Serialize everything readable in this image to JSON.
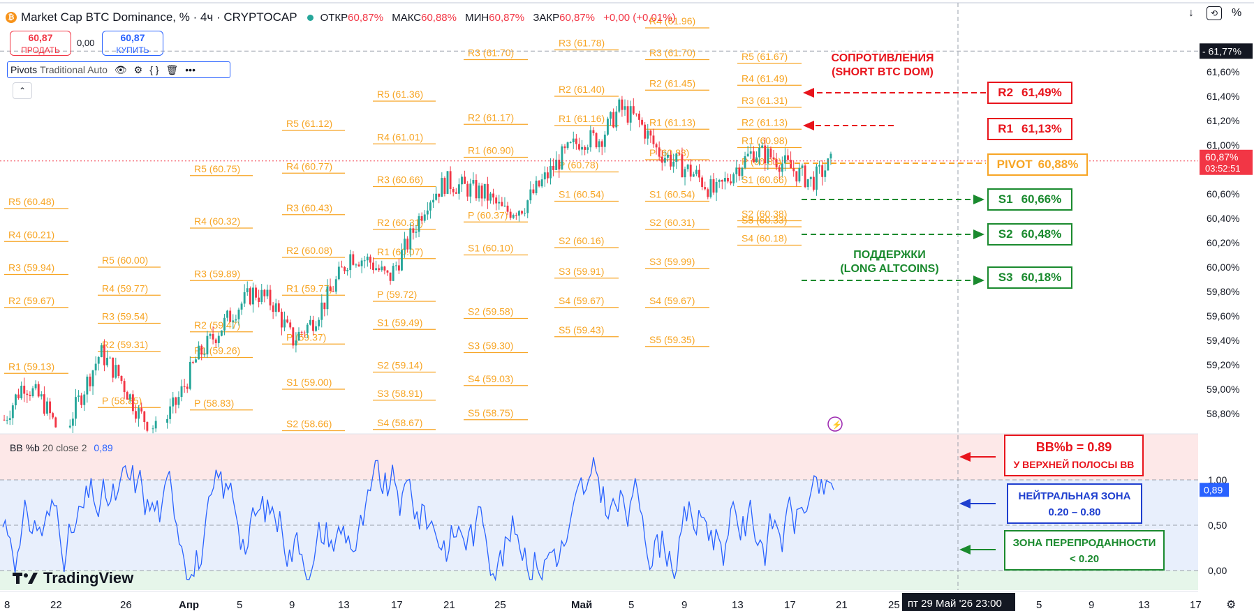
{
  "header": {
    "title": "Market Cap BTC Dominance, % · 4ч · CRYPTOCAP",
    "ohlc": [
      {
        "k": "ОТКР",
        "v": "60,87%"
      },
      {
        "k": "МАКС",
        "v": "60,88%"
      },
      {
        "k": "МИН",
        "v": "60,87%"
      },
      {
        "k": "ЗАКР",
        "v": "60,87%"
      }
    ],
    "change": "+0,00 (+0,01%)"
  },
  "trade": {
    "sell_price": "60,87",
    "sell_label": "ПРОДАТЬ",
    "spread": "0,00",
    "buy_price": "60,87",
    "buy_label": "КУПИТЬ"
  },
  "indicator": {
    "name": "Pivots",
    "params": "Traditional Auto"
  },
  "bb": {
    "name": "BB %b",
    "params": "20 close 2",
    "value": "0,89"
  },
  "brand": "TradingView",
  "price_scale": {
    "ticks": [
      "61,60%",
      "61,40%",
      "61,20%",
      "61,00%",
      "60,60%",
      "60,40%",
      "60,20%",
      "60,00%",
      "59,80%",
      "59,60%",
      "59,40%",
      "59,20%",
      "59,00%",
      "58,80%"
    ],
    "top_marker": "- 61,77%",
    "current_price": "60,87%",
    "countdown": "03:52:51"
  },
  "bb_scale": {
    "ticks": [
      "1,00",
      "0,50",
      "0,00"
    ],
    "current": "0,89"
  },
  "time_axis": {
    "ticks": [
      "8",
      "22",
      "26",
      "Апр",
      "5",
      "9",
      "13",
      "17",
      "21",
      "25",
      "Май",
      "5",
      "9",
      "13",
      "17",
      "21",
      "25",
      "5",
      "9",
      "13",
      "17"
    ],
    "crosshair_label": "пт 29 Май '26   23:00"
  },
  "colors": {
    "pivot": "#f7a524",
    "up": "#26a69a",
    "down": "#f23645",
    "bb_line": "#2962ff",
    "resist": "#e8141c",
    "support": "#1a8a2e"
  },
  "chart_data": {
    "type": "candlestick",
    "title": "Market Cap BTC Dominance, % · 4ч · CRYPTOCAP",
    "ylim": [
      58.7,
      61.95
    ],
    "pivot_groups": [
      {
        "labels": [
          "R5 (60.48)",
          "R4 (60.21)",
          "R3 (59.94)",
          "R2 (59.67)",
          "R1 (59.13)"
        ],
        "values": [
          60.48,
          60.21,
          59.94,
          59.67,
          59.13
        ]
      },
      {
        "labels": [
          "R5 (60.00)",
          "R4 (59.77)",
          "R3 (59.54)",
          "R2 (59.31)",
          "P (58.85)"
        ],
        "values": [
          60.0,
          59.77,
          59.54,
          59.31,
          58.85
        ]
      },
      {
        "labels": [
          "R5 (60.75)",
          "R4 (60.32)",
          "R3 (59.89)",
          "R2 (59.47)",
          "R1 (59.26)",
          "P (58.83)"
        ],
        "values": [
          60.75,
          60.32,
          59.89,
          59.47,
          59.26,
          58.83
        ]
      },
      {
        "labels": [
          "R5 (61.12)",
          "R4 (60.77)",
          "R3 (60.43)",
          "R2 (60.08)",
          "R1 (59.77)",
          "P (59.37)",
          "S1 (59.00)",
          "S2 (58.66)"
        ],
        "values": [
          61.12,
          60.77,
          60.43,
          60.08,
          59.77,
          59.37,
          59.0,
          58.66
        ]
      },
      {
        "labels": [
          "R5 (61.36)",
          "R4 (61.01)",
          "R3 (60.66)",
          "R2 (60.31)",
          "R1 (60.07)",
          "P (59.72)",
          "S1 (59.49)",
          "S2 (59.14)",
          "S3 (58.91)",
          "S4 (58.67)"
        ],
        "values": [
          61.36,
          61.01,
          60.66,
          60.31,
          60.07,
          59.72,
          59.49,
          59.14,
          58.91,
          58.67
        ]
      },
      {
        "labels": [
          "R3 (61.70)",
          "R2 (61.17)",
          "R1 (60.90)",
          "P (60.37)",
          "S1 (60.10)",
          "S2 (59.58)",
          "S3 (59.30)",
          "S4 (59.03)",
          "S5 (58.75)"
        ],
        "values": [
          61.7,
          61.17,
          60.9,
          60.37,
          60.1,
          59.58,
          59.3,
          59.03,
          58.75
        ]
      },
      {
        "labels": [
          "R3 (61.78)",
          "R2 (61.40)",
          "R1 (61.16)",
          "P (60.78)",
          "S1 (60.54)",
          "S2 (60.16)",
          "S3 (59.91)",
          "S4 (59.67)",
          "S5 (59.43)"
        ],
        "values": [
          61.78,
          61.4,
          61.16,
          60.78,
          60.54,
          60.16,
          59.91,
          59.67,
          59.43
        ]
      },
      {
        "labels": [
          "R4 (61.96)",
          "R3 (61.70)",
          "R2 (61.45)",
          "R1 (61.13)",
          "P (60.88)",
          "S1 (60.54)",
          "S2 (60.31)",
          "S3 (59.99)",
          "S4 (59.67)",
          "S5 (59.35)"
        ],
        "values": [
          61.96,
          61.7,
          61.45,
          61.13,
          60.88,
          60.54,
          60.31,
          59.99,
          59.67,
          59.35
        ]
      },
      {
        "labels": [
          "R5 (61.67)",
          "R4 (61.49)",
          "R3 (61.31)",
          "R2 (61.13)",
          "R1 (60.98)",
          "P (60.81)",
          "S1 (60.66)",
          "S2 (60.38)",
          "S3 (60.33)",
          "S4 (60.18)",
          "S5 (60.33)"
        ],
        "values": [
          61.67,
          61.49,
          61.31,
          61.13,
          60.98,
          60.81,
          60.66,
          60.38,
          60.33,
          60.18,
          60.33
        ]
      }
    ],
    "path": [
      58.75,
      59.05,
      58.9,
      58.6,
      58.95,
      59.3,
      59.1,
      58.8,
      58.65,
      58.9,
      59.25,
      59.45,
      59.65,
      59.8,
      59.7,
      59.4,
      59.55,
      59.8,
      60.1,
      60.05,
      59.9,
      60.2,
      60.55,
      60.7,
      60.65,
      60.6,
      60.45,
      60.5,
      60.7,
      60.9,
      61.05,
      61.05,
      61.3,
      61.2,
      60.95,
      60.85,
      60.75,
      60.6,
      60.8,
      60.95,
      60.9,
      60.8,
      60.7,
      60.85
    ]
  },
  "annotations": {
    "resistance_title": "СОПРОТИВЛЕНИЯ\n(SHORT BTC DOM)",
    "support_title": "ПОДДЕРЖКИ\n(LONG ALTCOINS)",
    "r2": {
      "k": "R2",
      "v": "61,49%"
    },
    "r1": {
      "k": "R1",
      "v": "61,13%"
    },
    "pivot": {
      "k": "PIVOT",
      "v": "60,88%"
    },
    "s1": {
      "k": "S1",
      "v": "60,66%"
    },
    "s2": {
      "k": "S2",
      "v": "60,48%"
    },
    "s3": {
      "k": "S3",
      "v": "60,18%"
    },
    "bb_value": "BB%b = 0.89",
    "bb_value_sub": "У ВЕРХНЕЙ ПОЛОСЫ BB",
    "neutral": "НЕЙТРАЛЬНАЯ ЗОНА",
    "neutral_range": "0.20 – 0.80",
    "oversold": "ЗОНА ПЕРЕПРОДАННОСТИ",
    "oversold_range": "< 0.20"
  }
}
